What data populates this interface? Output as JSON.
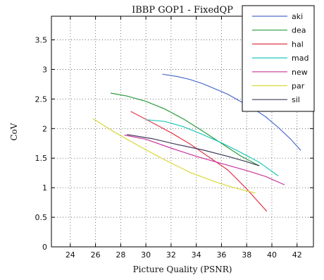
{
  "chart_data": {
    "type": "line",
    "title": "IBBP GOP1 - FixedQP",
    "xlabel": "Picture Quality (PSNR)",
    "ylabel": "CoV",
    "xlim": [
      22.5,
      43.3
    ],
    "ylim": [
      0,
      3.9
    ],
    "xticks": [
      24,
      26,
      28,
      30,
      32,
      34,
      36,
      38,
      40,
      42
    ],
    "yticks": [
      0,
      0.5,
      1,
      1.5,
      2,
      2.5,
      3,
      3.5
    ],
    "xtick_labels": [
      "24",
      "26",
      "28",
      "30",
      "32",
      "34",
      "36",
      "38",
      "40",
      "42"
    ],
    "ytick_labels": [
      "0",
      "0.5",
      "1",
      "1.5",
      "2",
      "2.5",
      "3",
      "3.5"
    ],
    "grid": true,
    "legend_position": "top-right",
    "series": [
      {
        "name": "aki",
        "color": "#4f6ecb",
        "x": [
          31.3,
          32.5,
          33.5,
          34.5,
          35.5,
          36.5,
          37.5,
          38.5,
          39.5,
          40.5,
          41.5,
          42.3
        ],
        "y": [
          2.92,
          2.88,
          2.83,
          2.76,
          2.67,
          2.58,
          2.46,
          2.34,
          2.2,
          2.02,
          1.82,
          1.63
        ]
      },
      {
        "name": "dea",
        "color": "#2a9a3c",
        "x": [
          27.2,
          28.5,
          30.0,
          31.5,
          33.0,
          34.5,
          36.0,
          37.5,
          39.0
        ],
        "y": [
          2.6,
          2.55,
          2.46,
          2.33,
          2.16,
          1.96,
          1.75,
          1.54,
          1.37
        ]
      },
      {
        "name": "hal",
        "color": "#e0384a",
        "x": [
          28.8,
          30.5,
          32.0,
          33.5,
          35.0,
          36.5,
          38.0,
          39.6
        ],
        "y": [
          2.29,
          2.1,
          1.93,
          1.74,
          1.52,
          1.3,
          0.98,
          0.6
        ]
      },
      {
        "name": "mad",
        "color": "#1ec8b8",
        "x": [
          30.0,
          31.5,
          33.0,
          34.5,
          36.0,
          37.5,
          39.0,
          40.5
        ],
        "y": [
          2.15,
          2.12,
          2.03,
          1.9,
          1.76,
          1.6,
          1.43,
          1.2
        ]
      },
      {
        "name": "new",
        "color": "#c8359e",
        "x": [
          28.3,
          30.0,
          32.0,
          34.0,
          36.0,
          38.0,
          39.5,
          41.0
        ],
        "y": [
          1.89,
          1.82,
          1.67,
          1.53,
          1.41,
          1.29,
          1.19,
          1.05
        ]
      },
      {
        "name": "par",
        "color": "#d8d83a",
        "x": [
          25.8,
          27.5,
          29.5,
          31.5,
          33.5,
          35.5,
          37.0,
          38.7
        ],
        "y": [
          2.17,
          1.94,
          1.7,
          1.47,
          1.26,
          1.1,
          1.0,
          0.91
        ]
      },
      {
        "name": "sil",
        "color": "#3c3c5a",
        "x": [
          28.5,
          30.5,
          32.5,
          34.5,
          36.5,
          38.0,
          39.0
        ],
        "y": [
          1.9,
          1.83,
          1.73,
          1.64,
          1.53,
          1.44,
          1.37
        ]
      }
    ]
  }
}
